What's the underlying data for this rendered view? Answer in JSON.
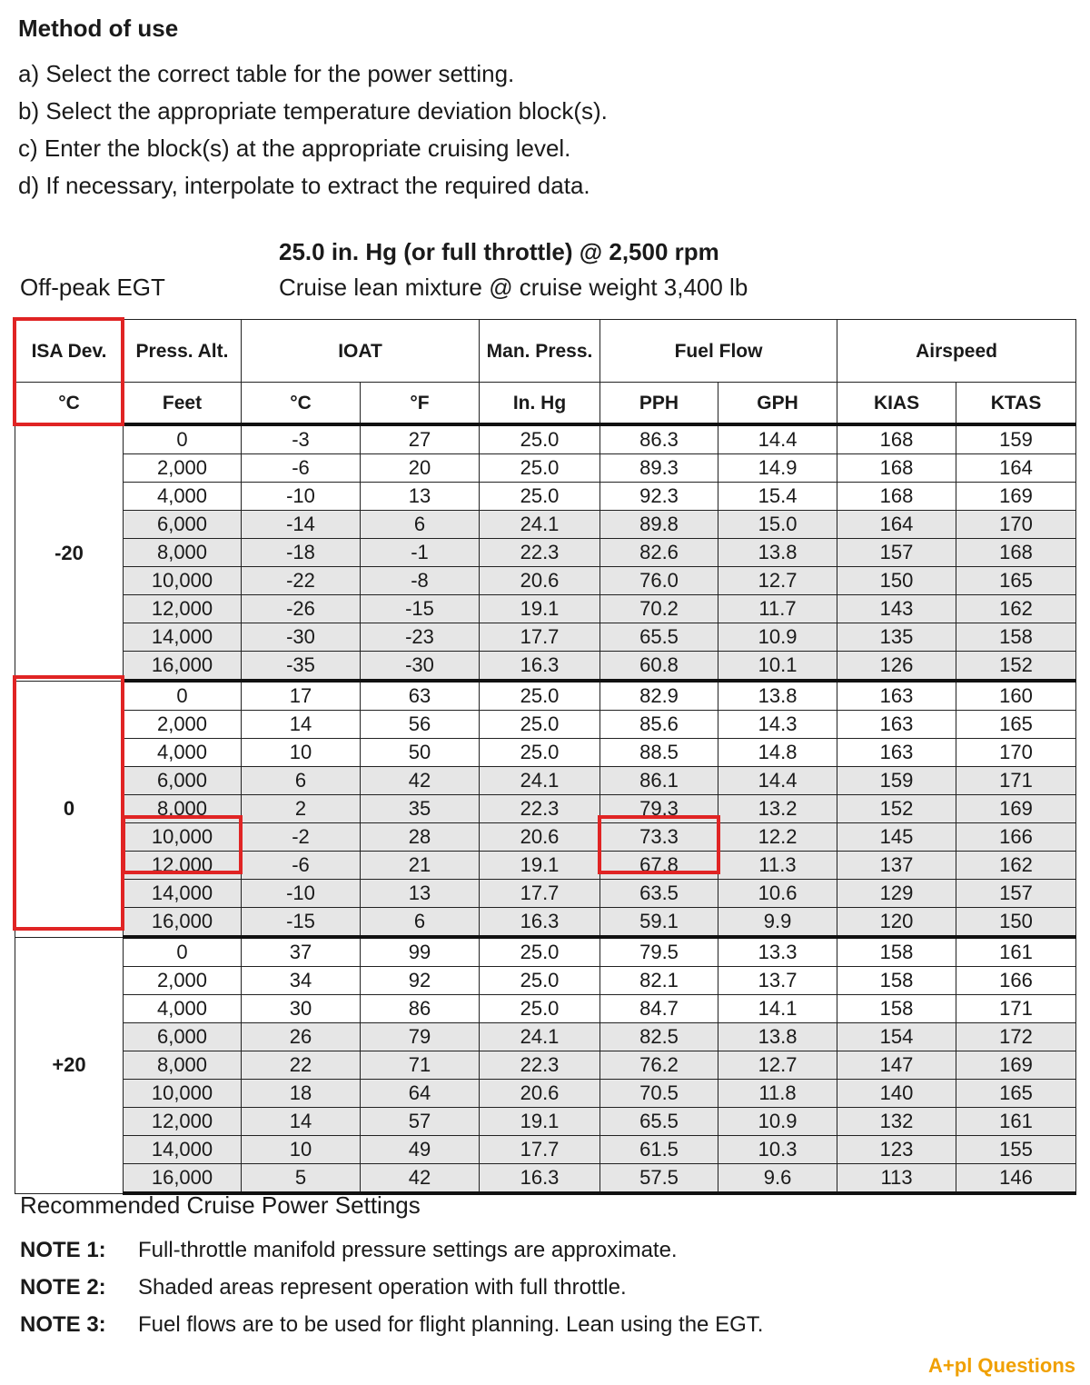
{
  "method": {
    "title": "Method of use",
    "steps": [
      "a)  Select the correct table for the power setting.",
      "b)  Select the appropriate temperature deviation block(s).",
      "c)  Enter the block(s) at the appropriate cruising level.",
      "d)  If necessary, interpolate to extract the required data."
    ]
  },
  "table": {
    "heading": "25.0 in. Hg (or full throttle) @ 2,500 rpm",
    "egt": "Off-peak EGT",
    "subheading": "Cruise lean mixture @ cruise weight 3,400 lb",
    "header_top": {
      "isa": "ISA Dev.",
      "alt": "Press. Alt.",
      "ioat": "IOAT",
      "man": "Man. Press.",
      "fuel": "Fuel Flow",
      "airspeed": "Airspeed"
    },
    "header_units": [
      "°C",
      "Feet",
      "°C",
      "°F",
      "In. Hg",
      "PPH",
      "GPH",
      "KIAS",
      "KTAS"
    ],
    "blocks": [
      {
        "isa": "-20",
        "rows": [
          [
            "0",
            "-3",
            "27",
            "25.0",
            "86.3",
            "14.4",
            "168",
            "159"
          ],
          [
            "2,000",
            "-6",
            "20",
            "25.0",
            "89.3",
            "14.9",
            "168",
            "164"
          ],
          [
            "4,000",
            "-10",
            "13",
            "25.0",
            "92.3",
            "15.4",
            "168",
            "169"
          ],
          [
            "6,000",
            "-14",
            "6",
            "24.1",
            "89.8",
            "15.0",
            "164",
            "170"
          ],
          [
            "8,000",
            "-18",
            "-1",
            "22.3",
            "82.6",
            "13.8",
            "157",
            "168"
          ],
          [
            "10,000",
            "-22",
            "-8",
            "20.6",
            "76.0",
            "12.7",
            "150",
            "165"
          ],
          [
            "12,000",
            "-26",
            "-15",
            "19.1",
            "70.2",
            "11.7",
            "143",
            "162"
          ],
          [
            "14,000",
            "-30",
            "-23",
            "17.7",
            "65.5",
            "10.9",
            "135",
            "158"
          ],
          [
            "16,000",
            "-35",
            "-30",
            "16.3",
            "60.8",
            "10.1",
            "126",
            "152"
          ]
        ]
      },
      {
        "isa": "0",
        "rows": [
          [
            "0",
            "17",
            "63",
            "25.0",
            "82.9",
            "13.8",
            "163",
            "160"
          ],
          [
            "2,000",
            "14",
            "56",
            "25.0",
            "85.6",
            "14.3",
            "163",
            "165"
          ],
          [
            "4,000",
            "10",
            "50",
            "25.0",
            "88.5",
            "14.8",
            "163",
            "170"
          ],
          [
            "6,000",
            "6",
            "42",
            "24.1",
            "86.1",
            "14.4",
            "159",
            "171"
          ],
          [
            "8,000",
            "2",
            "35",
            "22.3",
            "79.3",
            "13.2",
            "152",
            "169"
          ],
          [
            "10,000",
            "-2",
            "28",
            "20.6",
            "73.3",
            "12.2",
            "145",
            "166"
          ],
          [
            "12,000",
            "-6",
            "21",
            "19.1",
            "67.8",
            "11.3",
            "137",
            "162"
          ],
          [
            "14,000",
            "-10",
            "13",
            "17.7",
            "63.5",
            "10.6",
            "129",
            "157"
          ],
          [
            "16,000",
            "-15",
            "6",
            "16.3",
            "59.1",
            "9.9",
            "120",
            "150"
          ]
        ]
      },
      {
        "isa": "+20",
        "rows": [
          [
            "0",
            "37",
            "99",
            "25.0",
            "79.5",
            "13.3",
            "158",
            "161"
          ],
          [
            "2,000",
            "34",
            "92",
            "25.0",
            "82.1",
            "13.7",
            "158",
            "166"
          ],
          [
            "4,000",
            "30",
            "86",
            "25.0",
            "84.7",
            "14.1",
            "158",
            "171"
          ],
          [
            "6,000",
            "26",
            "79",
            "24.1",
            "82.5",
            "13.8",
            "154",
            "172"
          ],
          [
            "8,000",
            "22",
            "71",
            "22.3",
            "76.2",
            "12.7",
            "147",
            "169"
          ],
          [
            "10,000",
            "18",
            "64",
            "20.6",
            "70.5",
            "11.8",
            "140",
            "165"
          ],
          [
            "12,000",
            "14",
            "57",
            "19.1",
            "65.5",
            "10.9",
            "132",
            "161"
          ],
          [
            "14,000",
            "10",
            "49",
            "17.7",
            "61.5",
            "10.3",
            "123",
            "155"
          ],
          [
            "16,000",
            "5",
            "42",
            "16.3",
            "57.5",
            "9.6",
            "113",
            "146"
          ]
        ]
      }
    ],
    "shaded_rows_per_block": [
      3,
      4,
      5,
      6,
      7,
      8
    ]
  },
  "footer": {
    "title": "Recommended Cruise Power Settings",
    "notes": [
      {
        "label": "NOTE 1:",
        "text": "Full-throttle manifold pressure settings are approximate."
      },
      {
        "label": "NOTE 2:",
        "text": "Shaded areas represent operation with full throttle."
      },
      {
        "label": "NOTE 3:",
        "text": "Fuel flows are to be used for flight planning. Lean using the EGT."
      }
    ]
  },
  "logo": "A+pl Questions",
  "colors": {
    "highlight": "#e02424",
    "shade": "#e6e6e6",
    "logo": "#f0a000"
  }
}
